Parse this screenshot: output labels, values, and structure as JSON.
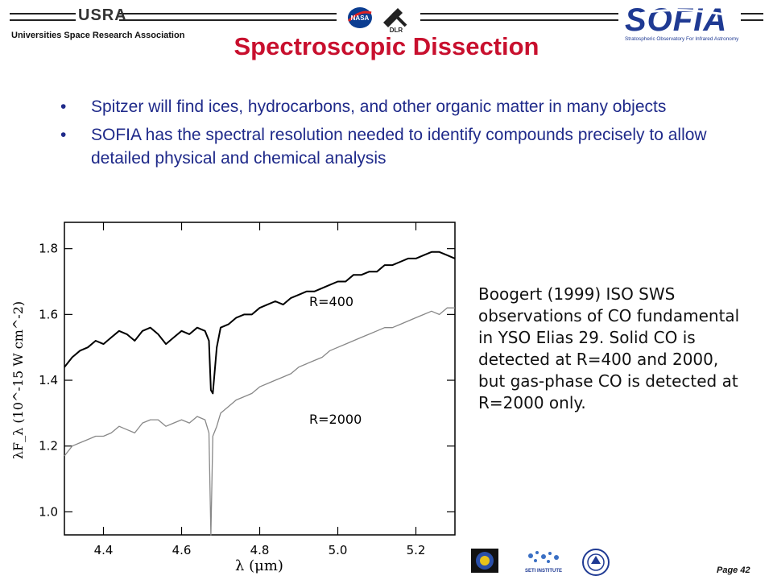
{
  "header": {
    "org_logo_text": "USRA",
    "org_name": "Universities Space Research Association",
    "nasa_logo_text": "NASA",
    "dlr_logo_text": "DLR",
    "sofia_logo_text": "SOFIA",
    "sofia_tagline": "Stratospheric Observatory For Infrared Astronomy"
  },
  "title": "Spectroscopic Dissection",
  "bullets": [
    "Spitzer will find ices, hydrocarbons, and other organic matter in many objects",
    "SOFIA has the spectral resolution needed to identify compounds precisely to allow detailed physical and chemical analysis"
  ],
  "caption": "Boogert (1999) ISO SWS observations of CO fundamental in YSO Elias 29. Solid CO is detected at R=400 and 2000, but gas-phase CO is detected at R=2000 only.",
  "footer": {
    "page_label": "Page 42",
    "seti_text": "SETI INSTITUTE"
  },
  "chart_data": {
    "type": "line",
    "xlabel": "λ (μm)",
    "ylabel": "λF_λ (10^-15 W cm^-2)",
    "xlim": [
      4.3,
      5.3
    ],
    "ylim": [
      0.93,
      1.88
    ],
    "x_ticks": [
      "4.4",
      "4.6",
      "4.8",
      "5.0",
      "5.2"
    ],
    "y_ticks": [
      "1.0",
      "1.2",
      "1.4",
      "1.6",
      "1.8"
    ],
    "annotations": [
      "R=400",
      "R=2000"
    ],
    "series": [
      {
        "name": "R=400",
        "color": "#000000",
        "x": [
          4.3,
          4.32,
          4.34,
          4.36,
          4.38,
          4.4,
          4.42,
          4.44,
          4.46,
          4.48,
          4.5,
          4.52,
          4.54,
          4.56,
          4.58,
          4.6,
          4.62,
          4.64,
          4.66,
          4.67,
          4.675,
          4.68,
          4.69,
          4.7,
          4.72,
          4.74,
          4.76,
          4.78,
          4.8,
          4.82,
          4.84,
          4.86,
          4.88,
          4.9,
          4.92,
          4.94,
          4.96,
          4.98,
          5.0,
          5.02,
          5.04,
          5.06,
          5.08,
          5.1,
          5.12,
          5.14,
          5.16,
          5.18,
          5.2,
          5.22,
          5.24,
          5.26,
          5.28,
          5.3
        ],
        "y": [
          1.44,
          1.47,
          1.49,
          1.5,
          1.52,
          1.51,
          1.53,
          1.55,
          1.54,
          1.52,
          1.55,
          1.56,
          1.54,
          1.51,
          1.53,
          1.55,
          1.54,
          1.56,
          1.55,
          1.52,
          1.37,
          1.36,
          1.5,
          1.56,
          1.57,
          1.59,
          1.6,
          1.6,
          1.62,
          1.63,
          1.64,
          1.63,
          1.65,
          1.66,
          1.67,
          1.67,
          1.68,
          1.69,
          1.7,
          1.7,
          1.72,
          1.72,
          1.73,
          1.73,
          1.75,
          1.75,
          1.76,
          1.77,
          1.77,
          1.78,
          1.79,
          1.79,
          1.78,
          1.77
        ]
      },
      {
        "name": "R=2000",
        "color": "#888888",
        "x": [
          4.3,
          4.32,
          4.34,
          4.36,
          4.38,
          4.4,
          4.42,
          4.44,
          4.46,
          4.48,
          4.5,
          4.52,
          4.54,
          4.56,
          4.58,
          4.6,
          4.62,
          4.64,
          4.66,
          4.67,
          4.675,
          4.68,
          4.69,
          4.7,
          4.72,
          4.74,
          4.76,
          4.78,
          4.8,
          4.82,
          4.84,
          4.86,
          4.88,
          4.9,
          4.92,
          4.94,
          4.96,
          4.98,
          5.0,
          5.02,
          5.04,
          5.06,
          5.08,
          5.1,
          5.12,
          5.14,
          5.16,
          5.18,
          5.2,
          5.22,
          5.24,
          5.26,
          5.28,
          5.3
        ],
        "y": [
          1.17,
          1.2,
          1.21,
          1.22,
          1.23,
          1.23,
          1.24,
          1.26,
          1.25,
          1.24,
          1.27,
          1.28,
          1.28,
          1.26,
          1.27,
          1.28,
          1.27,
          1.29,
          1.28,
          1.24,
          0.93,
          1.23,
          1.26,
          1.3,
          1.32,
          1.34,
          1.35,
          1.36,
          1.38,
          1.39,
          1.4,
          1.41,
          1.42,
          1.44,
          1.45,
          1.46,
          1.47,
          1.49,
          1.5,
          1.51,
          1.52,
          1.53,
          1.54,
          1.55,
          1.56,
          1.56,
          1.57,
          1.58,
          1.59,
          1.6,
          1.61,
          1.6,
          1.62,
          1.62
        ]
      }
    ]
  }
}
